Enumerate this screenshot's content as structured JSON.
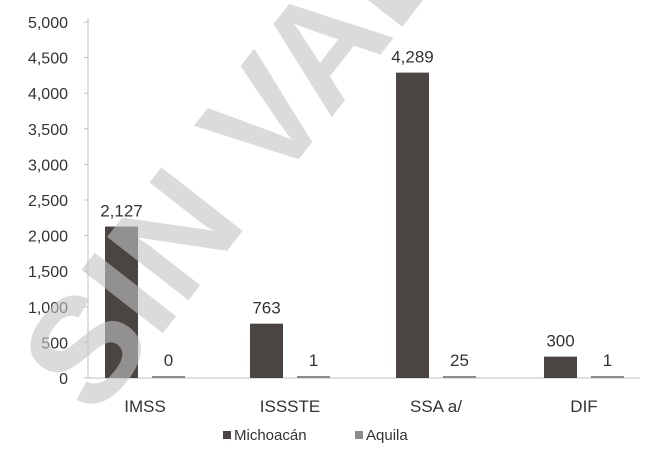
{
  "chart_data": {
    "type": "bar",
    "categories": [
      "IMSS",
      "ISSSTE",
      "SSA a/",
      "DIF"
    ],
    "series": [
      {
        "name": "Michoacán",
        "values": [
          2127,
          763,
          4289,
          300
        ],
        "labels": [
          "2,127",
          "763",
          "4,289",
          "300"
        ],
        "color": "#4a4543"
      },
      {
        "name": "Aquila",
        "values": [
          0,
          1,
          25,
          1
        ],
        "labels": [
          "0",
          "1",
          "25",
          "1"
        ],
        "color": "#8c8c8c"
      }
    ],
    "ylim": [
      0,
      5000
    ],
    "yticks": [
      0,
      500,
      1000,
      1500,
      2000,
      2500,
      3000,
      3500,
      4000,
      4500,
      5000
    ],
    "ytick_labels": [
      "0",
      "500",
      "1,000",
      "1,500",
      "2,000",
      "2,500",
      "3,000",
      "3,500",
      "4,000",
      "4,500",
      "5,000"
    ],
    "grid": false,
    "legend_position": "bottom",
    "title": "",
    "xlabel": "",
    "ylabel": ""
  },
  "watermark": {
    "text": "SIN VALOR"
  }
}
